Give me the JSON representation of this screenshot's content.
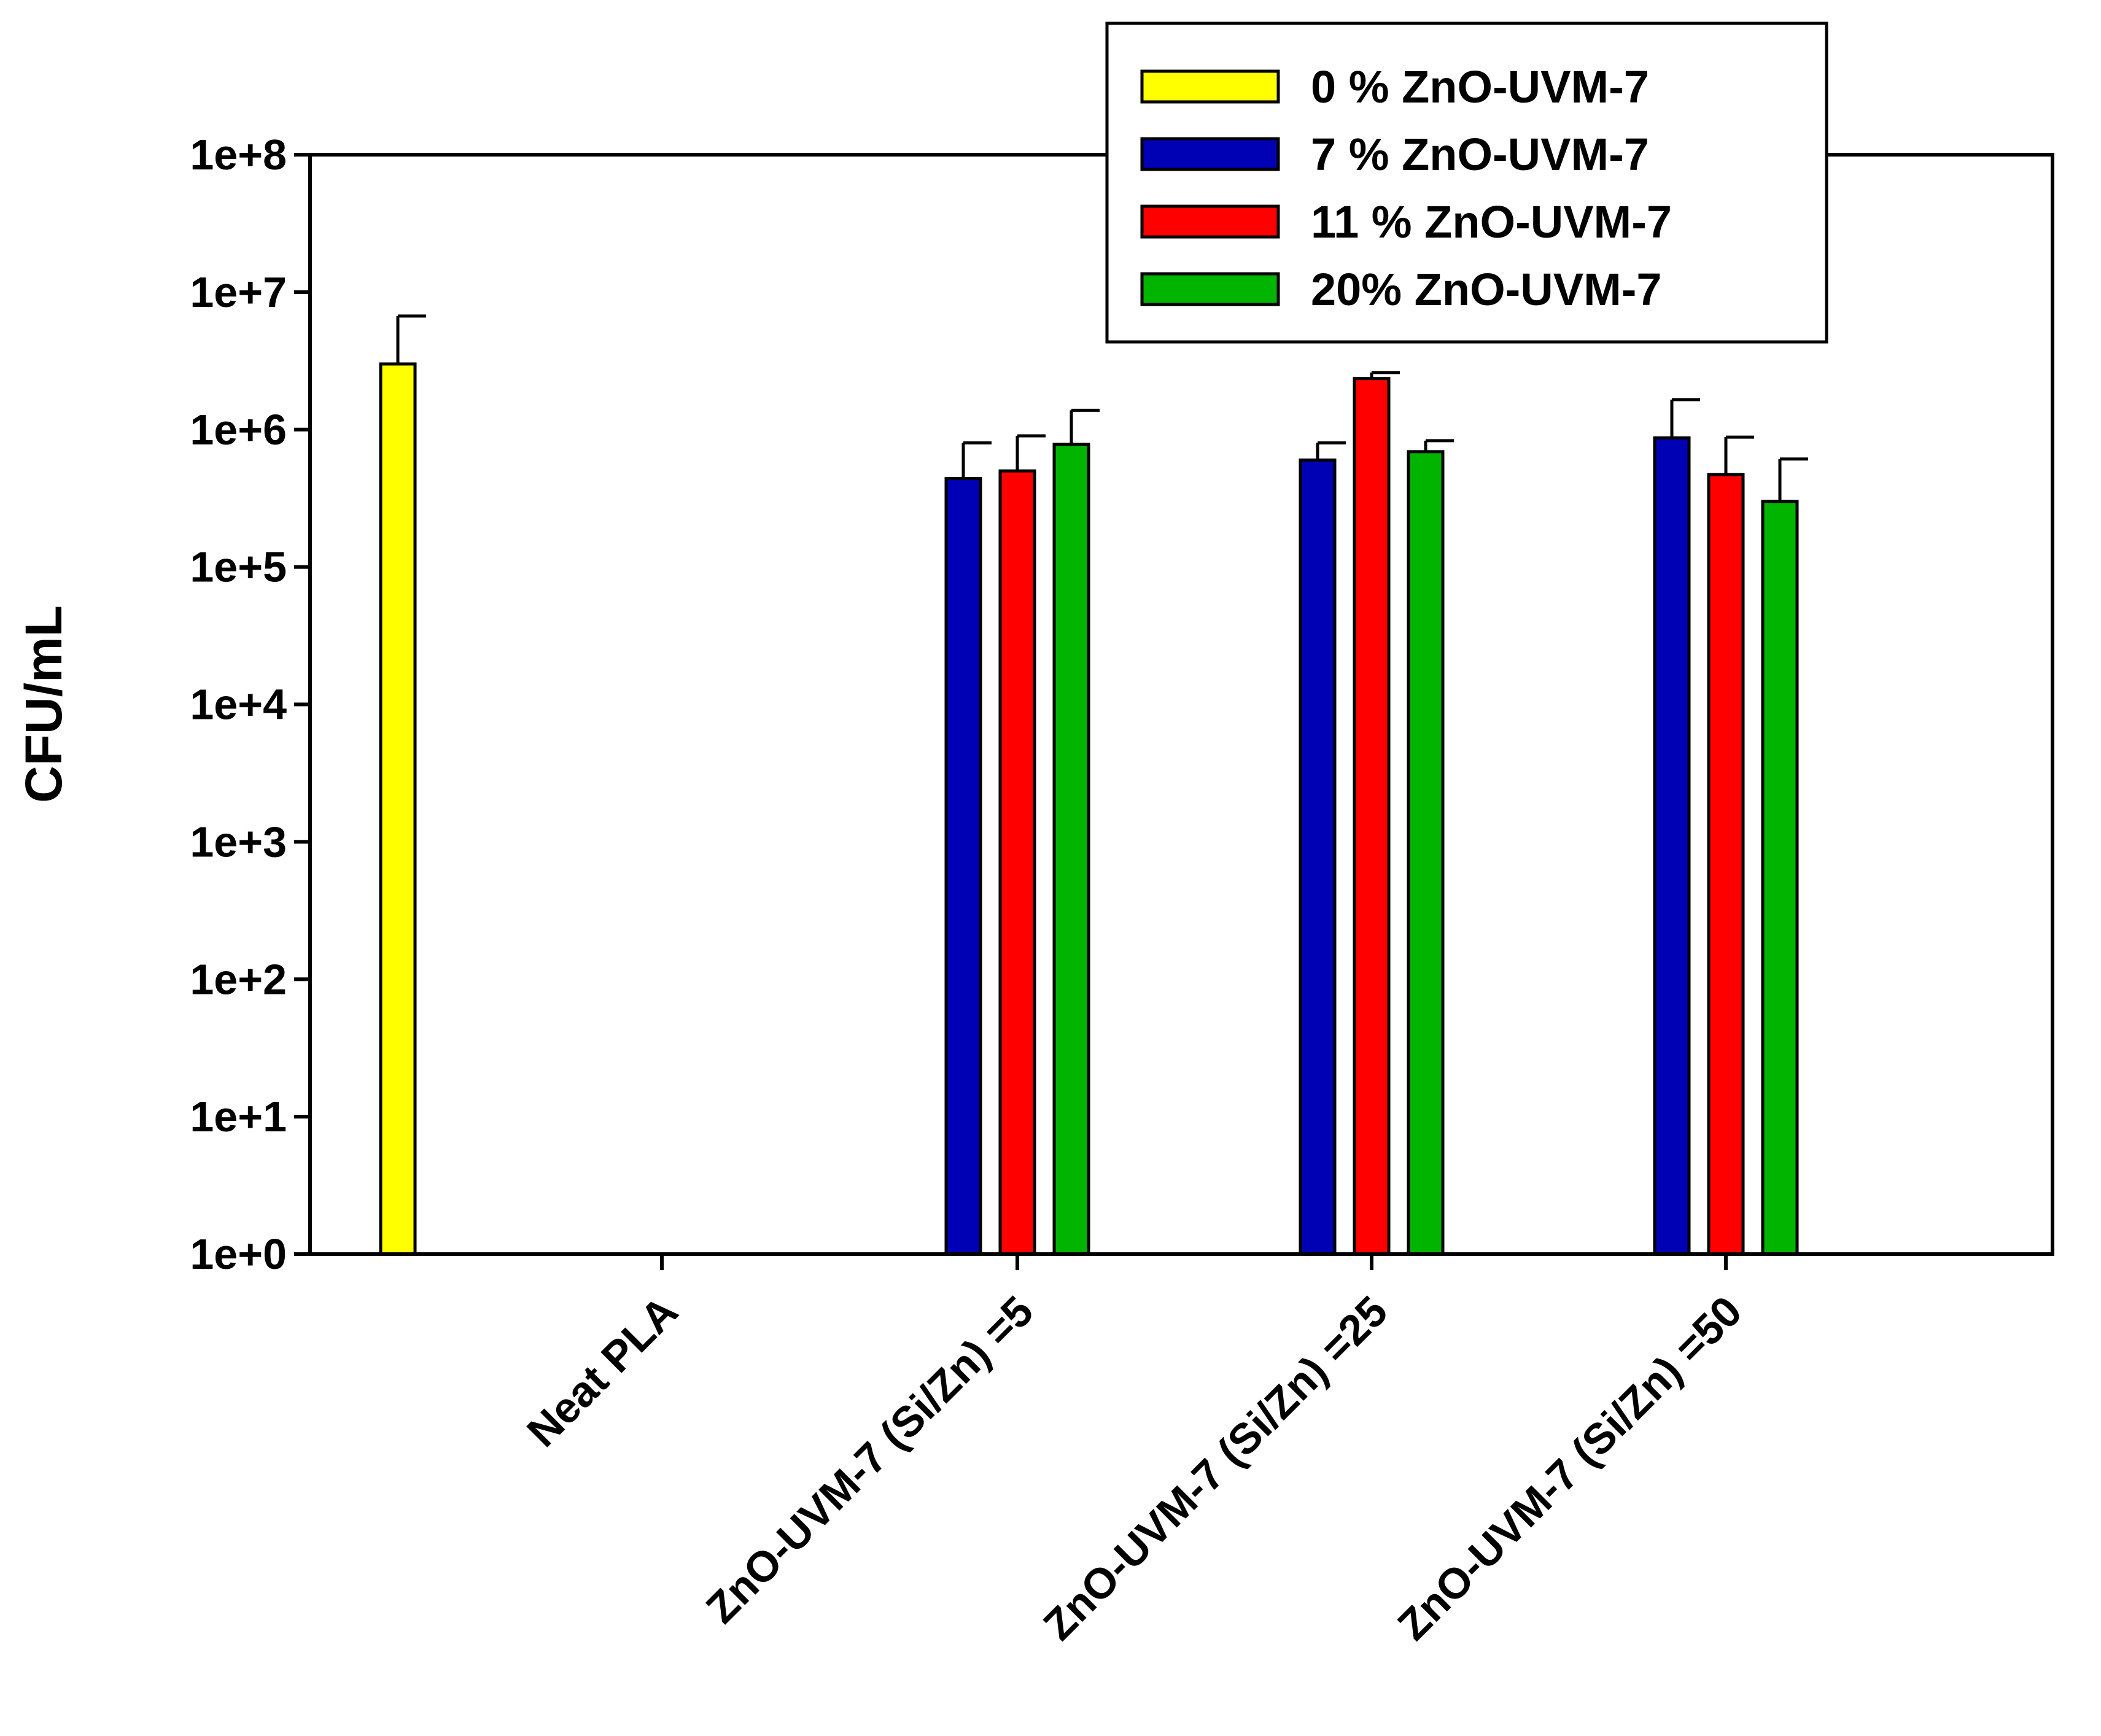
{
  "chart_data": {
    "type": "bar",
    "title": "",
    "xlabel": "",
    "ylabel": "CFU/mL",
    "yscale": "log",
    "ylim": [
      1,
      100000000
    ],
    "yticks": [
      {
        "value": 1,
        "label": "1e+0"
      },
      {
        "value": 10,
        "label": "1e+1"
      },
      {
        "value": 100,
        "label": "1e+2"
      },
      {
        "value": 1000,
        "label": "1e+3"
      },
      {
        "value": 10000,
        "label": "1e+4"
      },
      {
        "value": 100000,
        "label": "1e+5"
      },
      {
        "value": 1000000,
        "label": "1e+6"
      },
      {
        "value": 10000000,
        "label": "1e+7"
      },
      {
        "value": 100000000,
        "label": "1e+8"
      }
    ],
    "categories": [
      "Neat PLA",
      "ZnO-UVM-7  (Si/Zn) =5",
      "ZnO-UVM-7  (Si/Zn) =25",
      "ZnO-UVM-7  (Si/Zn) =50"
    ],
    "legend_position": "top-right",
    "series": [
      {
        "name": "0 % ZnO-UVM-7",
        "color": "#ffff00",
        "values": [
          3000000,
          null,
          null,
          null
        ],
        "errors_upper": [
          6700000,
          null,
          null,
          null
        ]
      },
      {
        "name": "7 % ZnO-UVM-7",
        "color": "#0000b4",
        "values": [
          null,
          440000,
          600000,
          870000
        ],
        "errors_upper": [
          null,
          800000,
          800000,
          1650000
        ]
      },
      {
        "name": "11 % ZnO-UVM-7",
        "color": "#ff0000",
        "values": [
          null,
          500000,
          2350000,
          470000
        ],
        "errors_upper": [
          null,
          900000,
          2600000,
          880000
        ]
      },
      {
        "name": "20% ZnO-UVM-7",
        "color": "#00b400",
        "values": [
          null,
          780000,
          690000,
          300000
        ],
        "errors_upper": [
          null,
          1380000,
          830000,
          610000
        ]
      }
    ]
  }
}
